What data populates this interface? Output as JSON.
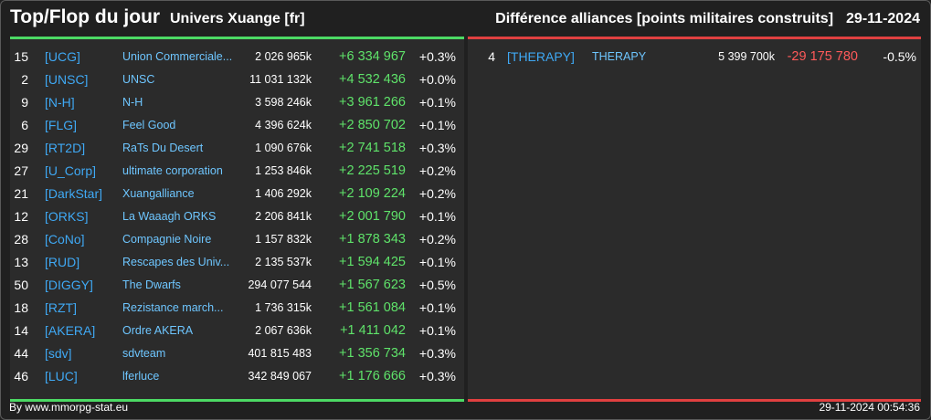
{
  "header": {
    "title": "Top/Flop du jour",
    "universe": "Univers Xuange [fr]",
    "category": "Différence alliances [points militaires construits]",
    "date": "29-11-2024"
  },
  "colors": {
    "positive": "#5fe36a",
    "negative": "#ff5a5a",
    "tag": "#3fa9f5",
    "name": "#6ec6ff",
    "top_accent": "#4cd964",
    "flop_accent": "#e04040"
  },
  "top": {
    "rows": [
      {
        "rank": "15",
        "tag": "[UCG]",
        "name": "Union Commerciale...",
        "points": "2 026 965k",
        "diff": "+6 334 967",
        "pct": "+0.3%"
      },
      {
        "rank": "2",
        "tag": "[UNSC]",
        "name": "UNSC",
        "points": "11 031 132k",
        "diff": "+4 532 436",
        "pct": "+0.0%"
      },
      {
        "rank": "9",
        "tag": "[N-H]",
        "name": "N-H",
        "points": "3 598 246k",
        "diff": "+3 961 266",
        "pct": "+0.1%"
      },
      {
        "rank": "6",
        "tag": "[FLG]",
        "name": "Feel Good",
        "points": "4 396 624k",
        "diff": "+2 850 702",
        "pct": "+0.1%"
      },
      {
        "rank": "29",
        "tag": "[RT2D]",
        "name": "RaTs Du Desert",
        "points": "1 090 676k",
        "diff": "+2 741 518",
        "pct": "+0.3%"
      },
      {
        "rank": "27",
        "tag": "[U_Corp]",
        "name": "ultimate corporation",
        "points": "1 253 846k",
        "diff": "+2 225 519",
        "pct": "+0.2%"
      },
      {
        "rank": "21",
        "tag": "[DarkStar]",
        "name": "Xuangalliance",
        "points": "1 406 292k",
        "diff": "+2 109 224",
        "pct": "+0.2%"
      },
      {
        "rank": "12",
        "tag": "[ORKS]",
        "name": "La Waaagh ORKS",
        "points": "2 206 841k",
        "diff": "+2 001 790",
        "pct": "+0.1%"
      },
      {
        "rank": "28",
        "tag": "[CoNo]",
        "name": "Compagnie Noire",
        "points": "1 157 832k",
        "diff": "+1 878 343",
        "pct": "+0.2%"
      },
      {
        "rank": "13",
        "tag": "[RUD]",
        "name": "Rescapes des Univ...",
        "points": "2 135 537k",
        "diff": "+1 594 425",
        "pct": "+0.1%"
      },
      {
        "rank": "50",
        "tag": "[DIGGY]",
        "name": "The Dwarfs",
        "points": "294 077 544",
        "diff": "+1 567 623",
        "pct": "+0.5%"
      },
      {
        "rank": "18",
        "tag": "[RZT]",
        "name": "Rezistance march...",
        "points": "1 736 315k",
        "diff": "+1 561 084",
        "pct": "+0.1%"
      },
      {
        "rank": "14",
        "tag": "[AKERA]",
        "name": "Ordre AKERA",
        "points": "2 067 636k",
        "diff": "+1 411 042",
        "pct": "+0.1%"
      },
      {
        "rank": "44",
        "tag": "[sdv]",
        "name": "sdvteam",
        "points": "401 815 483",
        "diff": "+1 356 734",
        "pct": "+0.3%"
      },
      {
        "rank": "46",
        "tag": "[LUC]",
        "name": "lferluce",
        "points": "342 849 067",
        "diff": "+1 176 666",
        "pct": "+0.3%"
      }
    ]
  },
  "flop": {
    "rows": [
      {
        "rank": "4",
        "tag": "[THERAPY]",
        "name": "THERAPY",
        "points": "5 399 700k",
        "diff": "-29 175 780",
        "pct": "-0.5%"
      }
    ]
  },
  "footer": {
    "credit": "By www.mmorpg-stat.eu",
    "timestamp": "29-11-2024 00:54:36"
  }
}
